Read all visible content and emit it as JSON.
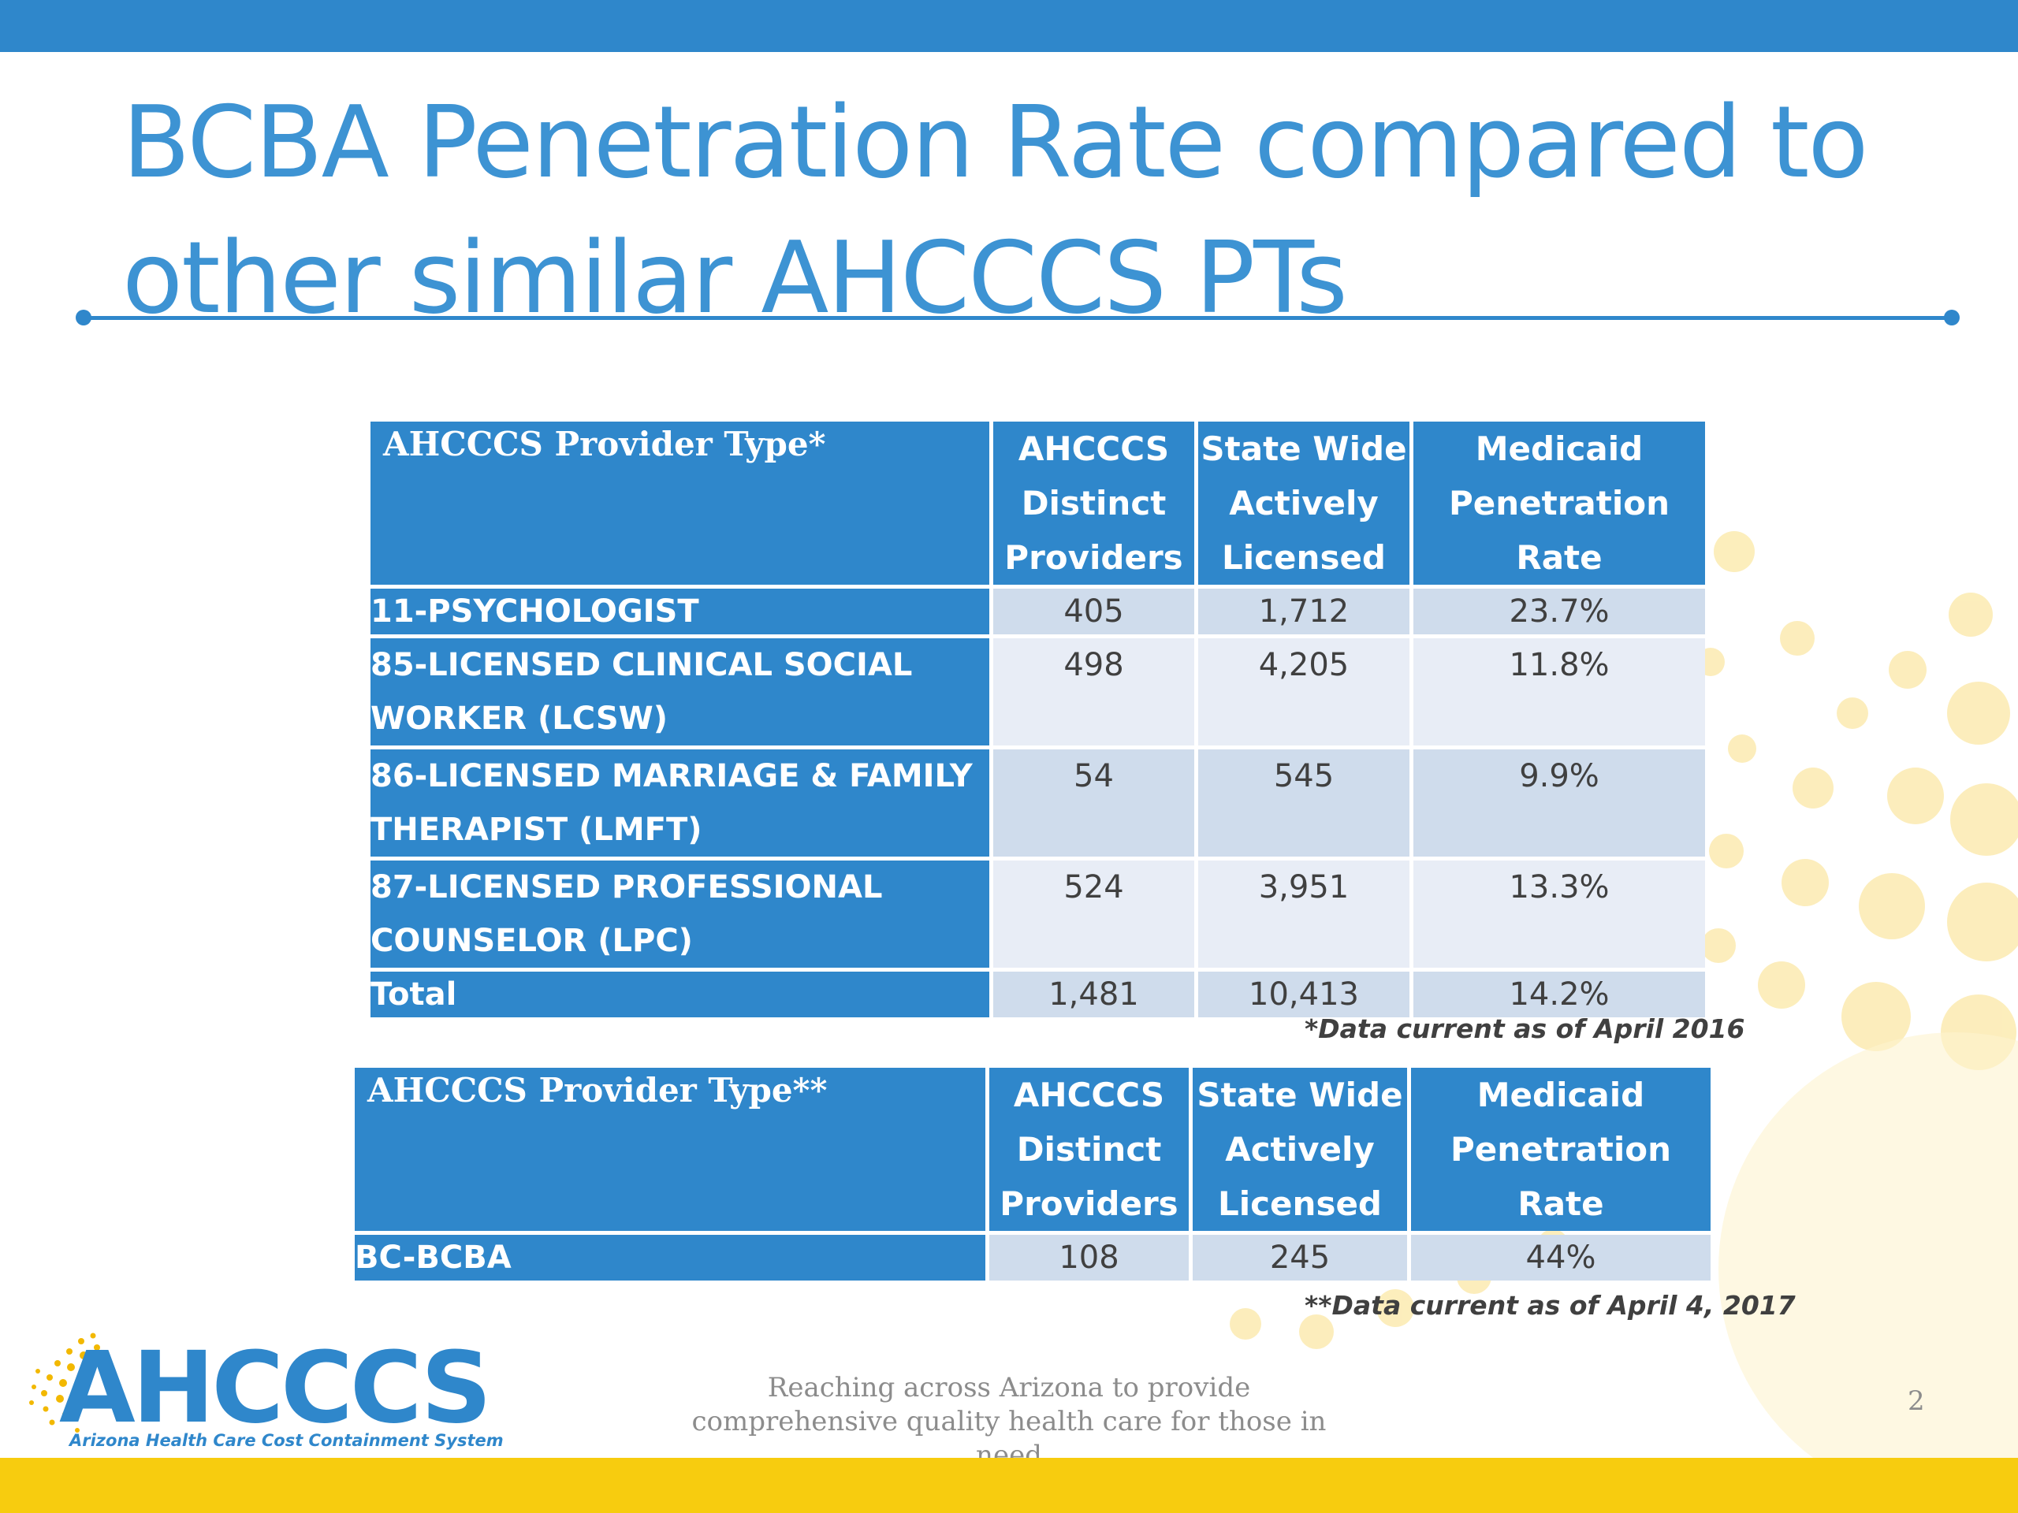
{
  "title": "BCBA Penetration Rate compared to other similar AHCCCS PTs",
  "colors": {
    "accent": "#2f87cb",
    "yellow": "#f7cc0f",
    "header_cell": "#2f87cb",
    "row_dark": "#cfdcec",
    "row_light": "#e8edf6"
  },
  "table1": {
    "headers": [
      "AHCCCS Provider Type*",
      "AHCCCS Distinct Providers",
      "State Wide Actively Licensed",
      "Medicaid Penetration Rate"
    ],
    "rows": [
      {
        "type": "11-PSYCHOLOGIST",
        "providers": "405",
        "licensed": "1,712",
        "rate": "23.7%"
      },
      {
        "type": "85-LICENSED CLINICAL SOCIAL WORKER (LCSW)",
        "providers": "498",
        "licensed": "4,205",
        "rate": "11.8%"
      },
      {
        "type": "86-LICENSED MARRIAGE & FAMILY THERAPIST (LMFT)",
        "providers": "54",
        "licensed": "545",
        "rate": "9.9%"
      },
      {
        "type": "87-LICENSED PROFESSIONAL COUNSELOR (LPC)",
        "providers": "524",
        "licensed": "3,951",
        "rate": "13.3%"
      },
      {
        "type": "Total",
        "providers": "1,481",
        "licensed": "10,413",
        "rate": "14.2%"
      }
    ],
    "note": "*Data current as of April 2016"
  },
  "table2": {
    "headers": [
      "AHCCCS Provider Type**",
      "AHCCCS Distinct Providers",
      "State Wide Actively Licensed",
      "Medicaid Penetration Rate"
    ],
    "rows": [
      {
        "type": "BC-BCBA",
        "providers": "108",
        "licensed": "245",
        "rate": "44%"
      }
    ],
    "note": "**Data current as of April 4, 2017"
  },
  "logo": {
    "name": "AHCCCS",
    "subtitle": "Arizona Health Care Cost Containment System"
  },
  "footer": {
    "tagline": "Reaching across Arizona to provide comprehensive quality health care for those in need",
    "page_number": "2"
  }
}
